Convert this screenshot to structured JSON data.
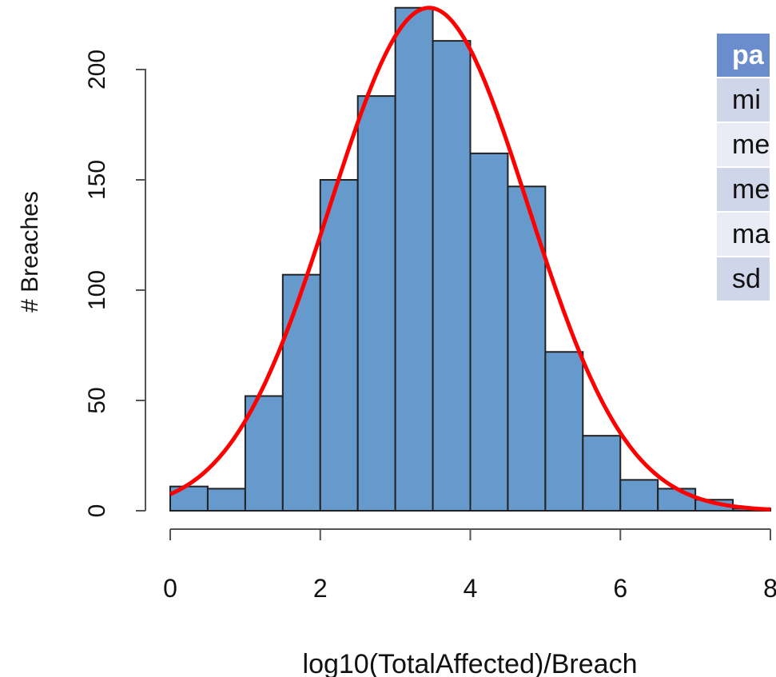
{
  "chart_data": {
    "type": "bar",
    "xlabel": "log10(TotalAffected)/Breach",
    "ylabel": "# Breaches",
    "xlim": [
      0,
      8
    ],
    "ylim": [
      0,
      230
    ],
    "x_ticks": [
      "0",
      "2",
      "4",
      "6",
      "8"
    ],
    "y_ticks": [
      "0",
      "50",
      "100",
      "150",
      "200"
    ],
    "bins": [
      0,
      0.5,
      1,
      1.5,
      2,
      2.5,
      3,
      3.5,
      4,
      4.5,
      5,
      5.5,
      6,
      6.5,
      7,
      7.5
    ],
    "bin_width": 0.5,
    "values": [
      11,
      10,
      52,
      107,
      150,
      188,
      228,
      213,
      162,
      147,
      72,
      34,
      14,
      10,
      5,
      1
    ],
    "bar_color": "#6699cc",
    "curve": {
      "type": "normal",
      "mean": 3.45,
      "sd": 1.32,
      "peak": 228,
      "color": "#ff0000"
    }
  },
  "table": {
    "header": "pa",
    "rows": [
      "mi",
      "me",
      "me",
      "ma",
      "sd"
    ],
    "header_color": "#6b8ccd",
    "row_colors": [
      "#d0d6e9",
      "#e9ecf5"
    ]
  }
}
